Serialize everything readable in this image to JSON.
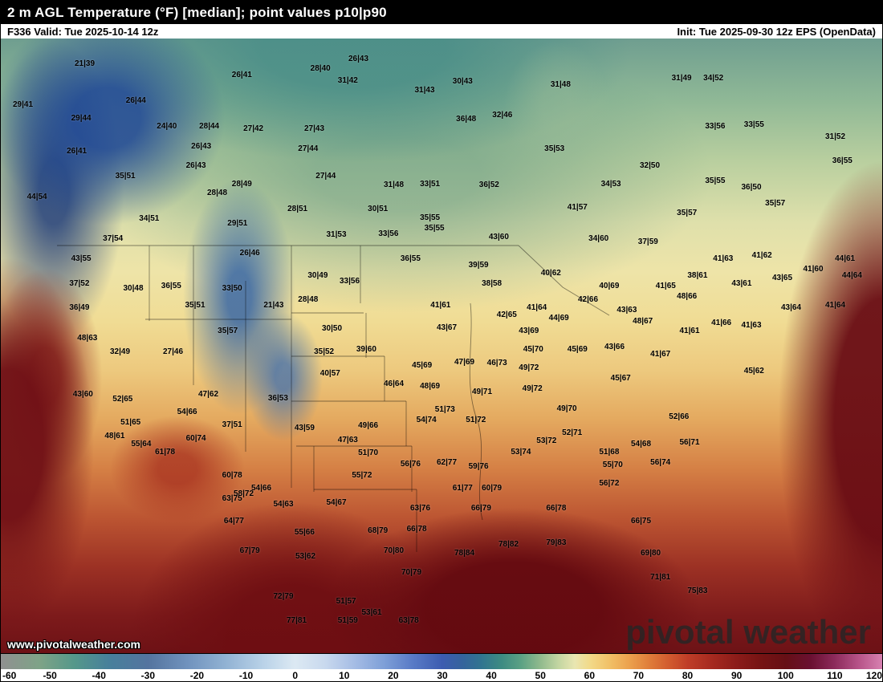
{
  "header": {
    "title": "2 m AGL Temperature (°F) [median]; point values p10|p90",
    "valid": "F336 Valid: Tue 2025-10-14 12z",
    "init": "Init: Tue 2025-09-30 12z EPS (OpenData)"
  },
  "watermark": {
    "url": "www.pivotalweather.com",
    "brand": "pivotal weather"
  },
  "colorbar": {
    "min": -60,
    "max": 120,
    "ticks": [
      -60,
      -50,
      -40,
      -30,
      -20,
      -10,
      0,
      10,
      20,
      30,
      40,
      50,
      60,
      70,
      80,
      90,
      100,
      110,
      120
    ],
    "stops": [
      {
        "t": -60,
        "c": "#909090"
      },
      {
        "t": -52,
        "c": "#7ea387"
      },
      {
        "t": -45,
        "c": "#55988a"
      },
      {
        "t": -38,
        "c": "#47809b"
      },
      {
        "t": -30,
        "c": "#54749f"
      },
      {
        "t": -22,
        "c": "#7092bd"
      },
      {
        "t": -14,
        "c": "#92b3d4"
      },
      {
        "t": -6,
        "c": "#bcd4e9"
      },
      {
        "t": 0,
        "c": "#dce9f3"
      },
      {
        "t": 6,
        "c": "#c9d9ee"
      },
      {
        "t": 12,
        "c": "#a6bde5"
      },
      {
        "t": 18,
        "c": "#7fa0d8"
      },
      {
        "t": 24,
        "c": "#587ac6"
      },
      {
        "t": 30,
        "c": "#3c5cb0"
      },
      {
        "t": 34,
        "c": "#35639d"
      },
      {
        "t": 38,
        "c": "#317490"
      },
      {
        "t": 42,
        "c": "#3d8b82"
      },
      {
        "t": 46,
        "c": "#5ba184"
      },
      {
        "t": 50,
        "c": "#90ba8d"
      },
      {
        "t": 54,
        "c": "#c6d7a3"
      },
      {
        "t": 57,
        "c": "#e9e6b1"
      },
      {
        "t": 60,
        "c": "#f2da89"
      },
      {
        "t": 64,
        "c": "#f1c167"
      },
      {
        "t": 68,
        "c": "#eca24e"
      },
      {
        "t": 72,
        "c": "#e07f3b"
      },
      {
        "t": 76,
        "c": "#d25c2f"
      },
      {
        "t": 80,
        "c": "#bf3d27"
      },
      {
        "t": 85,
        "c": "#a5291f"
      },
      {
        "t": 90,
        "c": "#8c1c19"
      },
      {
        "t": 95,
        "c": "#761313"
      },
      {
        "t": 100,
        "c": "#660f15"
      },
      {
        "t": 105,
        "c": "#6a1031"
      },
      {
        "t": 110,
        "c": "#8c2a5b"
      },
      {
        "t": 115,
        "c": "#b75489"
      },
      {
        "t": 120,
        "c": "#d984b3"
      }
    ]
  },
  "points": [
    {
      "x": 9.5,
      "y": 4.2,
      "v": "21|39"
    },
    {
      "x": 27.3,
      "y": 6.0,
      "v": "26|41"
    },
    {
      "x": 36.2,
      "y": 5.0,
      "v": "28|40"
    },
    {
      "x": 40.5,
      "y": 3.4,
      "v": "26|43"
    },
    {
      "x": 39.3,
      "y": 6.9,
      "v": "31|42"
    },
    {
      "x": 48.0,
      "y": 8.5,
      "v": "31|43"
    },
    {
      "x": 52.3,
      "y": 7.1,
      "v": "30|43"
    },
    {
      "x": 63.4,
      "y": 7.6,
      "v": "31|48"
    },
    {
      "x": 77.1,
      "y": 6.5,
      "v": "31|49"
    },
    {
      "x": 80.7,
      "y": 6.5,
      "v": "34|52"
    },
    {
      "x": 2.5,
      "y": 10.8,
      "v": "29|41"
    },
    {
      "x": 15.3,
      "y": 10.2,
      "v": "26|44"
    },
    {
      "x": 9.1,
      "y": 13.1,
      "v": "29|44"
    },
    {
      "x": 18.8,
      "y": 14.4,
      "v": "24|40"
    },
    {
      "x": 23.6,
      "y": 14.4,
      "v": "28|44"
    },
    {
      "x": 28.6,
      "y": 14.8,
      "v": "27|42"
    },
    {
      "x": 35.5,
      "y": 14.8,
      "v": "27|43"
    },
    {
      "x": 52.7,
      "y": 13.2,
      "v": "36|48"
    },
    {
      "x": 56.8,
      "y": 12.5,
      "v": "32|46"
    },
    {
      "x": 80.9,
      "y": 14.4,
      "v": "33|56"
    },
    {
      "x": 85.3,
      "y": 14.1,
      "v": "33|55"
    },
    {
      "x": 94.5,
      "y": 16.1,
      "v": "31|52"
    },
    {
      "x": 8.6,
      "y": 18.4,
      "v": "26|41"
    },
    {
      "x": 22.7,
      "y": 17.6,
      "v": "26|43"
    },
    {
      "x": 34.8,
      "y": 18.0,
      "v": "27|44"
    },
    {
      "x": 62.7,
      "y": 18.0,
      "v": "35|53"
    },
    {
      "x": 73.5,
      "y": 20.7,
      "v": "32|50"
    },
    {
      "x": 95.3,
      "y": 20.0,
      "v": "36|55"
    },
    {
      "x": 14.1,
      "y": 22.4,
      "v": "35|51"
    },
    {
      "x": 22.1,
      "y": 20.7,
      "v": "26|43"
    },
    {
      "x": 36.8,
      "y": 22.4,
      "v": "27|44"
    },
    {
      "x": 27.3,
      "y": 23.7,
      "v": "28|49"
    },
    {
      "x": 24.5,
      "y": 25.2,
      "v": "28|48"
    },
    {
      "x": 44.5,
      "y": 23.9,
      "v": "31|48"
    },
    {
      "x": 48.6,
      "y": 23.7,
      "v": "33|51"
    },
    {
      "x": 55.3,
      "y": 23.9,
      "v": "36|52"
    },
    {
      "x": 69.1,
      "y": 23.7,
      "v": "34|53"
    },
    {
      "x": 80.9,
      "y": 23.3,
      "v": "35|55"
    },
    {
      "x": 85.0,
      "y": 24.3,
      "v": "36|50"
    },
    {
      "x": 87.7,
      "y": 26.9,
      "v": "35|57"
    },
    {
      "x": 33.6,
      "y": 27.8,
      "v": "28|51"
    },
    {
      "x": 42.7,
      "y": 27.8,
      "v": "30|51"
    },
    {
      "x": 48.6,
      "y": 29.2,
      "v": "35|55"
    },
    {
      "x": 4.1,
      "y": 25.9,
      "v": "44|54"
    },
    {
      "x": 16.8,
      "y": 29.4,
      "v": "34|51"
    },
    {
      "x": 26.8,
      "y": 30.1,
      "v": "29|51"
    },
    {
      "x": 12.7,
      "y": 32.7,
      "v": "37|54"
    },
    {
      "x": 9.1,
      "y": 35.9,
      "v": "43|55"
    },
    {
      "x": 38.0,
      "y": 32.0,
      "v": "31|53"
    },
    {
      "x": 43.9,
      "y": 31.8,
      "v": "33|56"
    },
    {
      "x": 49.1,
      "y": 31.0,
      "v": "35|55"
    },
    {
      "x": 56.4,
      "y": 32.4,
      "v": "43|60"
    },
    {
      "x": 65.3,
      "y": 27.6,
      "v": "41|57"
    },
    {
      "x": 67.7,
      "y": 32.7,
      "v": "34|60"
    },
    {
      "x": 73.3,
      "y": 33.1,
      "v": "37|59"
    },
    {
      "x": 77.7,
      "y": 28.5,
      "v": "35|57"
    },
    {
      "x": 81.8,
      "y": 35.9,
      "v": "41|63"
    },
    {
      "x": 86.2,
      "y": 35.4,
      "v": "41|62"
    },
    {
      "x": 92.0,
      "y": 37.6,
      "v": "41|60"
    },
    {
      "x": 95.6,
      "y": 35.9,
      "v": "44|61"
    },
    {
      "x": 46.4,
      "y": 35.9,
      "v": "36|55"
    },
    {
      "x": 28.2,
      "y": 35.0,
      "v": "26|46"
    },
    {
      "x": 54.1,
      "y": 37.0,
      "v": "39|59"
    },
    {
      "x": 55.6,
      "y": 39.9,
      "v": "38|58"
    },
    {
      "x": 62.3,
      "y": 38.3,
      "v": "40|62"
    },
    {
      "x": 8.9,
      "y": 39.9,
      "v": "37|52"
    },
    {
      "x": 15.0,
      "y": 40.7,
      "v": "30|48"
    },
    {
      "x": 19.3,
      "y": 40.3,
      "v": "36|55"
    },
    {
      "x": 26.2,
      "y": 40.7,
      "v": "33|50"
    },
    {
      "x": 35.9,
      "y": 38.7,
      "v": "30|49"
    },
    {
      "x": 39.5,
      "y": 39.6,
      "v": "33|56"
    },
    {
      "x": 8.9,
      "y": 43.8,
      "v": "36|49"
    },
    {
      "x": 22.0,
      "y": 43.5,
      "v": "35|51"
    },
    {
      "x": 30.9,
      "y": 43.5,
      "v": "21|43"
    },
    {
      "x": 34.8,
      "y": 42.5,
      "v": "28|48"
    },
    {
      "x": 49.8,
      "y": 43.5,
      "v": "41|61"
    },
    {
      "x": 66.5,
      "y": 42.5,
      "v": "42|66"
    },
    {
      "x": 68.9,
      "y": 40.3,
      "v": "40|69"
    },
    {
      "x": 75.3,
      "y": 40.3,
      "v": "41|65"
    },
    {
      "x": 78.9,
      "y": 38.7,
      "v": "38|61"
    },
    {
      "x": 77.7,
      "y": 42.0,
      "v": "48|66"
    },
    {
      "x": 83.9,
      "y": 39.9,
      "v": "43|61"
    },
    {
      "x": 88.5,
      "y": 39.0,
      "v": "43|65"
    },
    {
      "x": 96.4,
      "y": 38.6,
      "v": "44|64"
    },
    {
      "x": 57.3,
      "y": 45.1,
      "v": "42|65"
    },
    {
      "x": 60.7,
      "y": 43.8,
      "v": "41|64"
    },
    {
      "x": 63.2,
      "y": 45.5,
      "v": "44|69"
    },
    {
      "x": 70.9,
      "y": 44.2,
      "v": "43|63"
    },
    {
      "x": 72.7,
      "y": 46.1,
      "v": "48|67"
    },
    {
      "x": 78.0,
      "y": 47.7,
      "v": "41|61"
    },
    {
      "x": 81.6,
      "y": 46.4,
      "v": "41|66"
    },
    {
      "x": 89.5,
      "y": 43.8,
      "v": "43|64"
    },
    {
      "x": 94.5,
      "y": 43.5,
      "v": "41|64"
    },
    {
      "x": 85.0,
      "y": 46.8,
      "v": "41|63"
    },
    {
      "x": 9.8,
      "y": 48.8,
      "v": "48|63"
    },
    {
      "x": 13.5,
      "y": 51.1,
      "v": "32|49"
    },
    {
      "x": 19.5,
      "y": 51.1,
      "v": "27|46"
    },
    {
      "x": 25.7,
      "y": 47.7,
      "v": "35|57"
    },
    {
      "x": 37.5,
      "y": 47.2,
      "v": "30|50"
    },
    {
      "x": 36.6,
      "y": 51.0,
      "v": "35|52"
    },
    {
      "x": 41.4,
      "y": 50.7,
      "v": "39|60"
    },
    {
      "x": 50.5,
      "y": 47.1,
      "v": "43|67"
    },
    {
      "x": 59.8,
      "y": 47.7,
      "v": "43|69"
    },
    {
      "x": 60.3,
      "y": 50.7,
      "v": "45|70"
    },
    {
      "x": 65.3,
      "y": 50.7,
      "v": "45|69"
    },
    {
      "x": 69.5,
      "y": 50.3,
      "v": "43|66"
    },
    {
      "x": 74.7,
      "y": 51.4,
      "v": "41|67"
    },
    {
      "x": 37.3,
      "y": 54.6,
      "v": "40|57"
    },
    {
      "x": 47.7,
      "y": 53.3,
      "v": "45|69"
    },
    {
      "x": 52.5,
      "y": 52.7,
      "v": "47|69"
    },
    {
      "x": 56.2,
      "y": 52.9,
      "v": "46|73"
    },
    {
      "x": 59.8,
      "y": 53.7,
      "v": "49|72"
    },
    {
      "x": 85.3,
      "y": 54.2,
      "v": "45|62"
    },
    {
      "x": 9.3,
      "y": 57.9,
      "v": "43|60"
    },
    {
      "x": 13.8,
      "y": 58.8,
      "v": "52|65"
    },
    {
      "x": 23.5,
      "y": 57.9,
      "v": "47|62"
    },
    {
      "x": 31.4,
      "y": 58.6,
      "v": "36|53"
    },
    {
      "x": 44.5,
      "y": 56.3,
      "v": "46|64"
    },
    {
      "x": 48.6,
      "y": 56.6,
      "v": "48|69"
    },
    {
      "x": 54.5,
      "y": 57.6,
      "v": "49|71"
    },
    {
      "x": 60.2,
      "y": 57.0,
      "v": "49|72"
    },
    {
      "x": 64.1,
      "y": 60.3,
      "v": "49|70"
    },
    {
      "x": 70.2,
      "y": 55.3,
      "v": "45|67"
    },
    {
      "x": 76.8,
      "y": 61.6,
      "v": "52|66"
    },
    {
      "x": 14.7,
      "y": 62.5,
      "v": "51|65"
    },
    {
      "x": 21.1,
      "y": 60.8,
      "v": "54|66"
    },
    {
      "x": 26.2,
      "y": 62.9,
      "v": "37|51"
    },
    {
      "x": 34.4,
      "y": 63.5,
      "v": "43|59"
    },
    {
      "x": 41.6,
      "y": 63.1,
      "v": "49|66"
    },
    {
      "x": 50.3,
      "y": 60.5,
      "v": "51|73"
    },
    {
      "x": 48.2,
      "y": 62.1,
      "v": "54|74"
    },
    {
      "x": 53.8,
      "y": 62.2,
      "v": "51|72"
    },
    {
      "x": 61.8,
      "y": 65.5,
      "v": "53|72"
    },
    {
      "x": 64.7,
      "y": 64.2,
      "v": "52|71"
    },
    {
      "x": 72.5,
      "y": 66.0,
      "v": "54|68"
    },
    {
      "x": 78.0,
      "y": 65.8,
      "v": "56|71"
    },
    {
      "x": 12.9,
      "y": 64.8,
      "v": "48|61"
    },
    {
      "x": 15.9,
      "y": 66.0,
      "v": "55|64"
    },
    {
      "x": 18.6,
      "y": 67.3,
      "v": "61|78"
    },
    {
      "x": 22.1,
      "y": 65.1,
      "v": "60|74"
    },
    {
      "x": 39.3,
      "y": 65.4,
      "v": "47|63"
    },
    {
      "x": 41.6,
      "y": 67.5,
      "v": "51|70"
    },
    {
      "x": 58.9,
      "y": 67.3,
      "v": "53|74"
    },
    {
      "x": 68.9,
      "y": 67.3,
      "v": "51|68"
    },
    {
      "x": 69.3,
      "y": 69.4,
      "v": "55|70"
    },
    {
      "x": 74.7,
      "y": 69.0,
      "v": "56|74"
    },
    {
      "x": 26.2,
      "y": 71.2,
      "v": "60|78"
    },
    {
      "x": 40.9,
      "y": 71.2,
      "v": "55|72"
    },
    {
      "x": 46.4,
      "y": 69.3,
      "v": "56|76"
    },
    {
      "x": 50.5,
      "y": 69.0,
      "v": "62|77"
    },
    {
      "x": 54.1,
      "y": 69.7,
      "v": "59|76"
    },
    {
      "x": 27.5,
      "y": 74.2,
      "v": "58|72"
    },
    {
      "x": 29.5,
      "y": 73.3,
      "v": "54|66"
    },
    {
      "x": 52.3,
      "y": 73.2,
      "v": "61|77"
    },
    {
      "x": 55.6,
      "y": 73.2,
      "v": "60|79"
    },
    {
      "x": 68.9,
      "y": 72.5,
      "v": "56|72"
    },
    {
      "x": 26.2,
      "y": 74.9,
      "v": "63|75"
    },
    {
      "x": 32.0,
      "y": 75.8,
      "v": "54|63"
    },
    {
      "x": 38.0,
      "y": 75.6,
      "v": "54|67"
    },
    {
      "x": 47.5,
      "y": 76.5,
      "v": "63|76"
    },
    {
      "x": 42.7,
      "y": 80.1,
      "v": "68|79"
    },
    {
      "x": 47.1,
      "y": 79.9,
      "v": "66|78"
    },
    {
      "x": 54.4,
      "y": 76.5,
      "v": "66|79"
    },
    {
      "x": 62.9,
      "y": 76.5,
      "v": "66|78"
    },
    {
      "x": 52.5,
      "y": 83.8,
      "v": "78|84"
    },
    {
      "x": 57.5,
      "y": 82.4,
      "v": "78|82"
    },
    {
      "x": 62.9,
      "y": 82.1,
      "v": "79|83"
    },
    {
      "x": 72.5,
      "y": 78.6,
      "v": "66|75"
    },
    {
      "x": 73.6,
      "y": 83.8,
      "v": "69|80"
    },
    {
      "x": 74.7,
      "y": 87.7,
      "v": "71|81"
    },
    {
      "x": 78.9,
      "y": 89.9,
      "v": "75|83"
    },
    {
      "x": 26.4,
      "y": 78.6,
      "v": "64|77"
    },
    {
      "x": 34.4,
      "y": 80.4,
      "v": "55|66"
    },
    {
      "x": 28.2,
      "y": 83.4,
      "v": "67|79"
    },
    {
      "x": 34.5,
      "y": 84.3,
      "v": "53|62"
    },
    {
      "x": 44.5,
      "y": 83.4,
      "v": "70|80"
    },
    {
      "x": 46.5,
      "y": 86.9,
      "v": "70|79"
    },
    {
      "x": 32.0,
      "y": 90.8,
      "v": "72|79"
    },
    {
      "x": 39.1,
      "y": 91.6,
      "v": "51|57"
    },
    {
      "x": 39.3,
      "y": 94.8,
      "v": "51|59"
    },
    {
      "x": 42.0,
      "y": 93.5,
      "v": "53|61"
    },
    {
      "x": 46.2,
      "y": 94.8,
      "v": "63|78"
    },
    {
      "x": 33.5,
      "y": 94.8,
      "v": "77|81"
    }
  ]
}
